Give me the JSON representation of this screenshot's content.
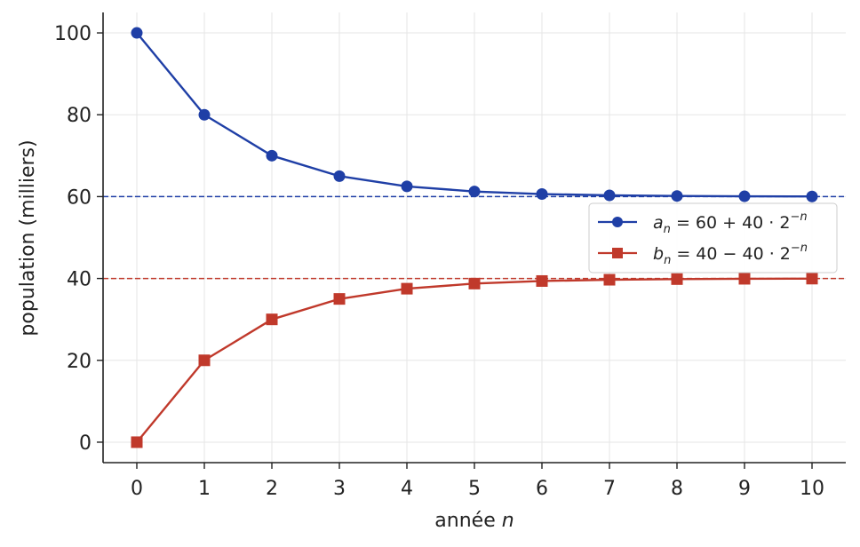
{
  "chart_data": {
    "type": "line",
    "title": "",
    "xlabel": "année n",
    "xlabel_parts": {
      "text": "année ",
      "var": "n"
    },
    "ylabel": "population (milliers)",
    "x": [
      0,
      1,
      2,
      3,
      4,
      5,
      6,
      7,
      8,
      9,
      10
    ],
    "xlim": [
      -0.5,
      10.5
    ],
    "ylim": [
      -5,
      105
    ],
    "xticks": [
      "0",
      "1",
      "2",
      "3",
      "4",
      "5",
      "6",
      "7",
      "8",
      "9",
      "10"
    ],
    "yticks": [
      "0",
      "20",
      "40",
      "60",
      "80",
      "100"
    ],
    "ytick_values": [
      0,
      20,
      40,
      60,
      80,
      100
    ],
    "grid": true,
    "legend_position": "right, just below the upper dashed line",
    "series": [
      {
        "name": "a_n = 60 + 40 · 2^(−n)",
        "legend_parts": {
          "var": "a",
          "sub": "n",
          "expr": " = 60 + 40 · 2",
          "sup": "−n"
        },
        "marker": "circle",
        "color": "#1f3fa6",
        "values": [
          100,
          80,
          70,
          65,
          62.5,
          61.25,
          60.625,
          60.3125,
          60.15625,
          60.078125,
          60.0390625
        ]
      },
      {
        "name": "b_n = 40 − 40 · 2^(−n)",
        "legend_parts": {
          "var": "b",
          "sub": "n",
          "expr": " = 40 − 40 · 2",
          "sup": "−n"
        },
        "marker": "square",
        "color": "#c0392b",
        "values": [
          0,
          20,
          30,
          35,
          37.5,
          38.75,
          39.375,
          39.6875,
          39.84375,
          39.921875,
          39.9609375
        ]
      }
    ],
    "reference_lines": [
      {
        "y": 60,
        "style": "dashed",
        "color": "#1f3fa6"
      },
      {
        "y": 40,
        "style": "dashed",
        "color": "#c0392b"
      }
    ]
  }
}
